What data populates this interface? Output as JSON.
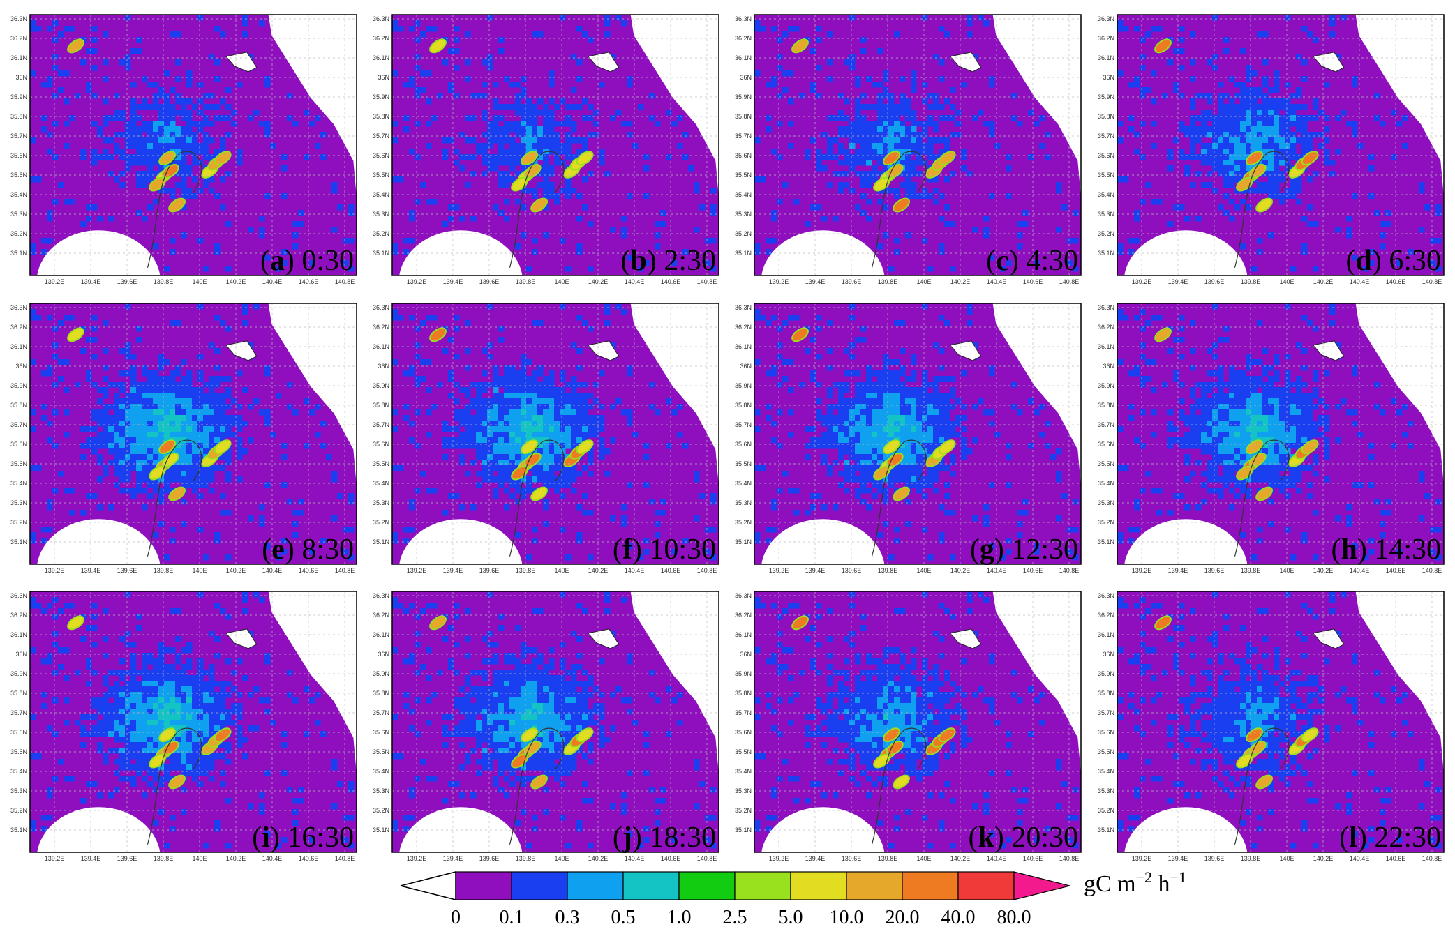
{
  "panels": [
    {
      "letter": "a",
      "time": "0:30",
      "intensity": 0.35
    },
    {
      "letter": "b",
      "time": "2:30",
      "intensity": 0.32
    },
    {
      "letter": "c",
      "time": "4:30",
      "intensity": 0.38
    },
    {
      "letter": "d",
      "time": "6:30",
      "intensity": 0.62
    },
    {
      "letter": "e",
      "time": "8:30",
      "intensity": 0.95
    },
    {
      "letter": "f",
      "time": "10:30",
      "intensity": 0.9
    },
    {
      "letter": "g",
      "time": "12:30",
      "intensity": 0.88
    },
    {
      "letter": "h",
      "time": "14:30",
      "intensity": 0.86
    },
    {
      "letter": "i",
      "time": "16:30",
      "intensity": 0.92
    },
    {
      "letter": "j",
      "time": "18:30",
      "intensity": 0.82
    },
    {
      "letter": "k",
      "time": "20:30",
      "intensity": 0.66
    },
    {
      "letter": "l",
      "time": "22:30",
      "intensity": 0.5
    }
  ],
  "lat_ticks": [
    "36.3N",
    "36.2N",
    "36.1N",
    "36N",
    "35.9N",
    "35.8N",
    "35.7N",
    "35.6N",
    "35.5N",
    "35.4N",
    "35.3N",
    "35.2N",
    "35.1N"
  ],
  "lon_ticks": [
    "139.2E",
    "139.4E",
    "139.6E",
    "139.8E",
    "140E",
    "140.2E",
    "140.4E",
    "140.6E",
    "140.8E"
  ],
  "colorbar": {
    "unit_base": "gC m",
    "unit_exp1": "−2",
    "unit_mid": " h",
    "unit_exp2": "−1",
    "labels": [
      "0",
      "0.1",
      "0.3",
      "0.5",
      "1.0",
      "2.5",
      "5.0",
      "10.0",
      "20.0",
      "40.0",
      "80.0"
    ],
    "colors": [
      "#8f0fbf",
      "#1a3ff0",
      "#0fa0f0",
      "#14c3c3",
      "#11cc11",
      "#99e01f",
      "#e3dd22",
      "#e5a82a",
      "#ee7b22",
      "#f03a3a",
      "#f21a8c"
    ]
  }
}
